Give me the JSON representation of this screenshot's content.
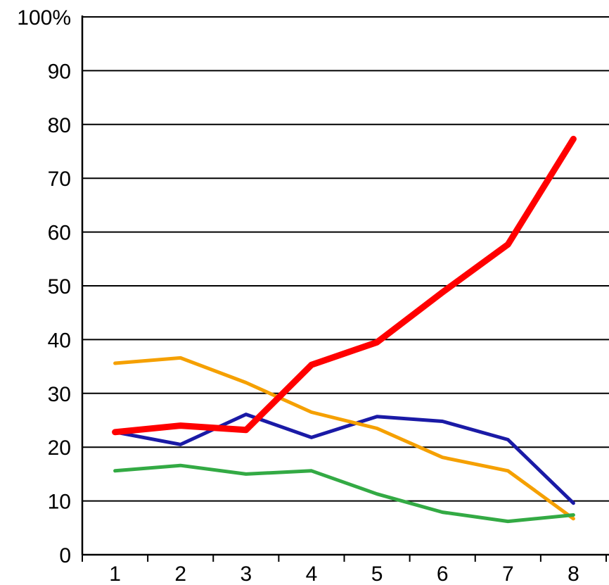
{
  "chart_data": {
    "type": "line",
    "title": "",
    "xlabel": "",
    "ylabel": "",
    "x": [
      1,
      2,
      3,
      4,
      5,
      6,
      7,
      8
    ],
    "x_tick_labels": [
      "1",
      "2",
      "3",
      "4",
      "5",
      "6",
      "7",
      "8"
    ],
    "y_tick_labels": [
      "0",
      "10",
      "20",
      "30",
      "40",
      "50",
      "60",
      "70",
      "80",
      "90",
      "100%"
    ],
    "ylim": [
      0,
      100
    ],
    "grid": true,
    "legend": "none",
    "series": [
      {
        "color": "#ff0000",
        "emphasis": "thick",
        "values": [
          22.8,
          24,
          23.2,
          35.3,
          39.5,
          48.8,
          57.7,
          77.3
        ]
      },
      {
        "color": "#1a1aa6",
        "emphasis": "normal",
        "values": [
          22.8,
          20.5,
          26.1,
          21.8,
          25.7,
          24.8,
          21.4,
          9.6
        ]
      },
      {
        "color": "#f5a000",
        "emphasis": "normal",
        "values": [
          35.6,
          36.6,
          32.0,
          26.5,
          23.5,
          18.1,
          15.6,
          6.7
        ]
      },
      {
        "color": "#33aa44",
        "emphasis": "normal",
        "values": [
          15.6,
          16.6,
          15.0,
          15.6,
          11.3,
          7.9,
          6.2,
          7.4
        ]
      }
    ]
  }
}
